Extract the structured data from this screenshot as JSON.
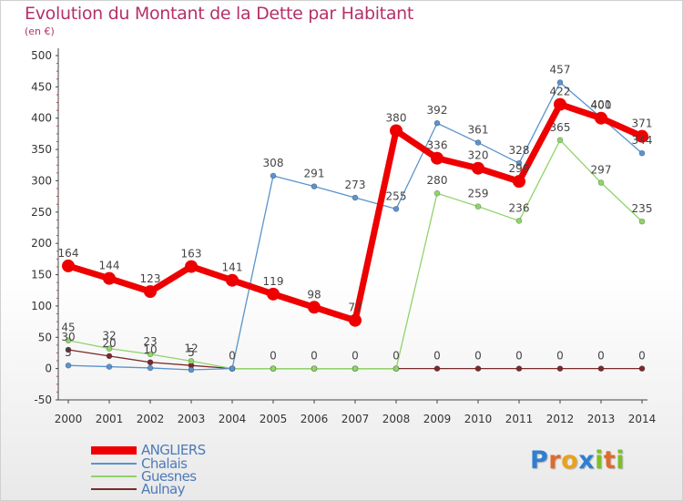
{
  "chart_data": {
    "type": "line",
    "title": "Evolution du Montant de la Dette par Habitant",
    "subtitle": "(en €)",
    "categories": [
      "2000",
      "2001",
      "2002",
      "2003",
      "2004",
      "2005",
      "2006",
      "2007",
      "2008",
      "2009",
      "2010",
      "2011",
      "2012",
      "2013",
      "2014"
    ],
    "ylim": [
      -50,
      500
    ],
    "yticks": [
      "-50",
      "0",
      "50",
      "100",
      "150",
      "200",
      "250",
      "300",
      "350",
      "400",
      "450",
      "500"
    ],
    "grid": false,
    "legend_position": "bottom-left",
    "series": [
      {
        "name": "ANGLIERS",
        "color": "#ee0000",
        "values": [
          164,
          144,
          123,
          163,
          141,
          119,
          98,
          77,
          380,
          336,
          320,
          299,
          422,
          400,
          371
        ]
      },
      {
        "name": "Chalais",
        "color": "#5b93cc",
        "values": [
          5,
          3,
          1,
          -2,
          0,
          308,
          291,
          273,
          255,
          392,
          361,
          328,
          457,
          401,
          344
        ]
      },
      {
        "name": "Guesnes",
        "color": "#8fd46a",
        "values": [
          45,
          32,
          23,
          12,
          0,
          0,
          0,
          0,
          0,
          280,
          259,
          236,
          365,
          297,
          235
        ]
      },
      {
        "name": "Aulnay",
        "color": "#7a2a2a",
        "values": [
          30,
          20,
          10,
          5,
          0,
          0,
          0,
          0,
          0,
          0,
          0,
          0,
          0,
          0,
          0
        ]
      }
    ],
    "value_labels": {
      "ANGLIERS": [
        "164",
        "144",
        "123",
        "163",
        "141",
        "119",
        "98",
        "77",
        "380",
        "336",
        "320",
        "299",
        "422",
        "400",
        "371"
      ],
      "Chalais": [
        "5",
        "",
        "",
        "",
        "",
        "308",
        "291",
        "273",
        "255",
        "392",
        "361",
        "328",
        "457",
        "401",
        "344"
      ],
      "Guesnes": [
        "45",
        "32",
        "23",
        "12",
        "",
        "",
        "",
        "",
        "",
        "280",
        "259",
        "236",
        "365",
        "297",
        "235"
      ],
      "Aulnay": [
        "30",
        "20",
        "10",
        "5",
        "0",
        "0",
        "0",
        "0",
        "0",
        "0",
        "0",
        "0",
        "0",
        "0",
        "0"
      ]
    }
  },
  "legend": [
    {
      "label": "ANGLIERS"
    },
    {
      "label": "Chalais"
    },
    {
      "label": "Guesnes"
    },
    {
      "label": "Aulnay"
    }
  ],
  "logo": {
    "letters": [
      "P",
      "r",
      "o",
      "x",
      "i",
      "t",
      "i"
    ],
    "colors": [
      "#2f7fd0",
      "#e06a2a",
      "#e9a21a",
      "#2f7fd0",
      "#7cbf2a",
      "#e06a2a",
      "#7cbf2a"
    ]
  }
}
